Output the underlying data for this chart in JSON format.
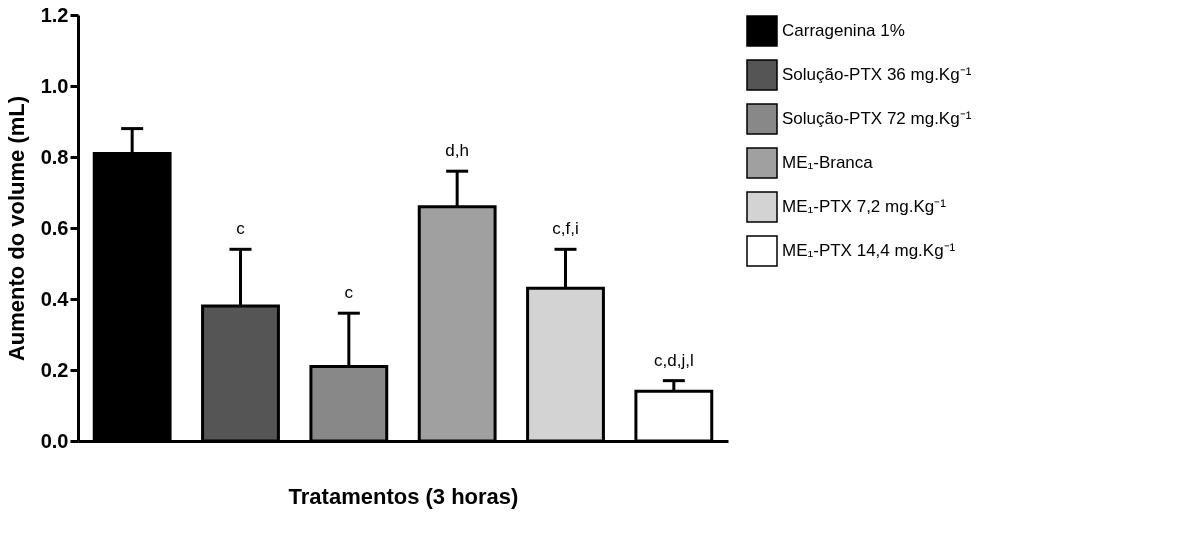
{
  "chart_data": {
    "type": "bar",
    "xlabel": "Tratamentos (3 horas)",
    "ylabel": "Aumento do volume (mL)",
    "categories": [
      null,
      null,
      null,
      null,
      null,
      null
    ],
    "series": [
      {
        "name": "Carragenina 1%",
        "color": "#000000",
        "values": [
          0.81,
          null,
          null,
          null,
          null,
          null
        ],
        "errors": [
          [
            0.81,
            0.88
          ],
          null,
          null,
          null,
          null,
          null
        ]
      },
      {
        "name": "Solução-PTX 36 mg.Kg⁻¹",
        "color": "#555555",
        "values": [
          null,
          0.38,
          null,
          null,
          null,
          null
        ],
        "errors": [
          null,
          [
            0.38,
            0.54
          ],
          null,
          null,
          null,
          null
        ]
      },
      {
        "name": "Solução-PTX 72 mg.Kg⁻¹",
        "color": "#888888",
        "values": [
          null,
          null,
          0.21,
          null,
          null,
          null
        ],
        "errors": [
          null,
          null,
          [
            0.21,
            0.36
          ],
          null,
          null,
          null
        ]
      },
      {
        "name": "ME₁-Branca",
        "color": "#a0a0a0",
        "values": [
          null,
          null,
          null,
          0.66,
          null,
          null
        ],
        "errors": [
          null,
          null,
          null,
          [
            0.66,
            0.76
          ],
          null,
          null
        ]
      },
      {
        "name": "ME₁-PTX 7,2 mg.Kg⁻¹",
        "color": "#d3d3d3",
        "values": [
          null,
          null,
          null,
          null,
          0.43,
          null
        ],
        "errors": [
          null,
          null,
          null,
          null,
          [
            0.43,
            0.54
          ],
          null
        ]
      },
      {
        "name": "ME₁-PTX 14,4 mg.Kg⁻¹",
        "color": "#ffffff",
        "values": [
          null,
          null,
          null,
          null,
          null,
          0.14
        ],
        "errors": [
          null,
          null,
          null,
          null,
          null,
          [
            0.14,
            0.17
          ]
        ]
      }
    ],
    "annotations": [
      {
        "text": "c",
        "y": 0.54
      },
      {
        "text": "c",
        "y": 0.36
      },
      {
        "text": "d,h",
        "y": 0.76
      },
      {
        "text": "c,f,i",
        "y": 0.54
      },
      {
        "text": "c,d,j,l",
        "y": 0.17
      }
    ],
    "ylim": [
      0,
      1.2
    ],
    "yticks": [
      {
        "value": 0,
        "label": "0.0"
      },
      {
        "value": 0.2,
        "label": "0.2"
      },
      {
        "value": 0.4,
        "label": "0.4"
      },
      {
        "value": 0.6,
        "label": "0.6"
      },
      {
        "value": 0.8,
        "label": "0.8"
      },
      {
        "value": 1.0,
        "label": "1.0"
      },
      {
        "value": 1.2,
        "label": "1.2"
      }
    ],
    "grid": false,
    "legend": "top right"
  }
}
